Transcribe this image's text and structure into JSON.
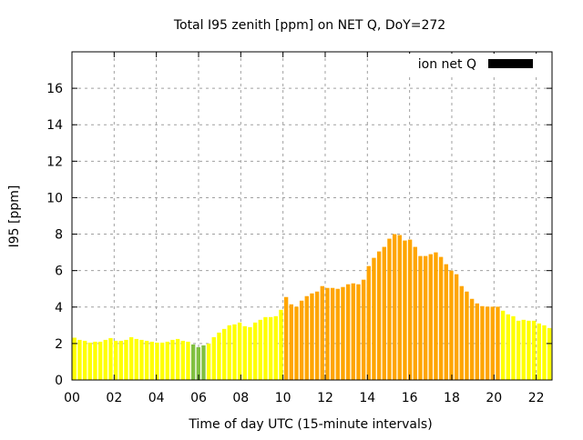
{
  "chart_data": {
    "type": "bar",
    "title": "Total I95 zenith [ppm] on NET Q, DoY=272",
    "xlabel": "Time of day UTC (15-minute intervals)",
    "ylabel": "I95 [ppm]",
    "xlim": [
      0,
      22.75
    ],
    "ylim": [
      0,
      18
    ],
    "x_ticks": [
      "00",
      "02",
      "04",
      "06",
      "08",
      "10",
      "12",
      "14",
      "16",
      "18",
      "20",
      "22"
    ],
    "y_ticks": [
      "0",
      "2",
      "4",
      "6",
      "8",
      "10",
      "12",
      "14",
      "16"
    ],
    "grid": true,
    "legend": {
      "label": "ion net Q",
      "placement": "top-right",
      "color": "#000000"
    },
    "color_scale": [
      {
        "below": 2,
        "color": "#80c040"
      },
      {
        "below": 4,
        "color": "#ffff00"
      },
      {
        "below": null,
        "color": "#ffa500"
      }
    ],
    "interval_hours": 0.25,
    "values": [
      2.32,
      2.2,
      2.15,
      2.05,
      2.1,
      2.1,
      2.2,
      2.3,
      2.15,
      2.15,
      2.2,
      2.35,
      2.25,
      2.2,
      2.15,
      2.1,
      2.05,
      2.05,
      2.1,
      2.2,
      2.25,
      2.15,
      2.1,
      1.95,
      1.8,
      1.9,
      2.0,
      2.35,
      2.6,
      2.8,
      3.0,
      3.05,
      3.15,
      2.95,
      2.9,
      3.15,
      3.3,
      3.45,
      3.45,
      3.5,
      3.85,
      4.55,
      4.15,
      4.02,
      4.35,
      4.6,
      4.75,
      4.85,
      5.15,
      5.05,
      5.05,
      5.0,
      5.1,
      5.25,
      5.3,
      5.25,
      5.5,
      6.25,
      6.7,
      7.05,
      7.3,
      7.75,
      8.0,
      7.95,
      7.65,
      7.7,
      7.3,
      6.8,
      6.8,
      6.9,
      7.0,
      6.75,
      6.35,
      6.0,
      5.8,
      5.15,
      4.85,
      4.45,
      4.2,
      4.05,
      4.02,
      4.02,
      4.02,
      3.8,
      3.6,
      3.5,
      3.25,
      3.3,
      3.25,
      3.25,
      3.1,
      3.0,
      2.85
    ]
  }
}
